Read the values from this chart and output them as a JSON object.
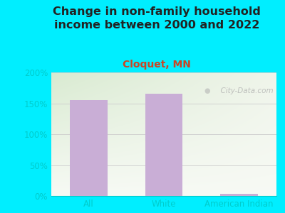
{
  "title": "Change in non-family household\nincome between 2000 and 2022",
  "subtitle": "Cloquet, MN",
  "categories": [
    "All",
    "White",
    "American Indian"
  ],
  "values": [
    155,
    165,
    4
  ],
  "bar_color": "#c9aed6",
  "outer_bg": "#00eeff",
  "plot_bg_top_left": "#d8e8cc",
  "plot_bg_top_right": "#e8f0e0",
  "plot_bg_bottom": "#f5f8f0",
  "title_fontsize": 11.5,
  "subtitle_fontsize": 10,
  "tick_color": "#00cccc",
  "title_color": "#222222",
  "subtitle_color": "#cc4422",
  "ylim": [
    0,
    200
  ],
  "yticks": [
    0,
    50,
    100,
    150,
    200
  ],
  "ytick_labels": [
    "0%",
    "50%",
    "100%",
    "150%",
    "200%"
  ],
  "watermark": "  City-Data.com"
}
